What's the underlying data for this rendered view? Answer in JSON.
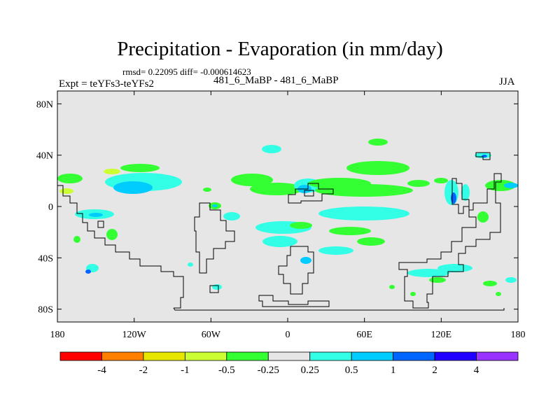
{
  "title": "Precipitation - Evaporation (in mm/day)",
  "stats": "rmsd= 0.22095 diff= -0.000614623",
  "experiment": "Expt = teYFs3-teYFs2",
  "case_label": "481_6_MaBP - 481_6_MaBP",
  "season": "JJA",
  "map": {
    "background_color": "#e6e6e6",
    "y_axis_ticks": [
      {
        "lat": 80,
        "label": "80N"
      },
      {
        "lat": 40,
        "label": "40N"
      },
      {
        "lat": 0,
        "label": "0"
      },
      {
        "lat": -40,
        "label": "40S"
      },
      {
        "lat": -80,
        "label": "80S"
      }
    ],
    "x_axis_ticks": [
      {
        "lon": -180,
        "label": "180"
      },
      {
        "lon": -120,
        "label": "120W"
      },
      {
        "lon": -60,
        "label": "60W"
      },
      {
        "lon": 0,
        "label": "0"
      },
      {
        "lon": 60,
        "label": "60E"
      },
      {
        "lon": 120,
        "label": "120E"
      },
      {
        "lon": 180,
        "label": "180"
      }
    ]
  },
  "colorbar": {
    "colors": [
      "#ff0000",
      "#ff7f00",
      "#e6e600",
      "#ccff33",
      "#33ff33",
      "#e6e6e6",
      "#33ffe6",
      "#00ccff",
      "#0066ff",
      "#2200ff",
      "#9933ff"
    ],
    "labels": [
      "-4",
      "-2",
      "-1",
      "-0.5",
      "-0.25",
      "0.25",
      "0.5",
      "1",
      "2",
      "4"
    ]
  }
}
